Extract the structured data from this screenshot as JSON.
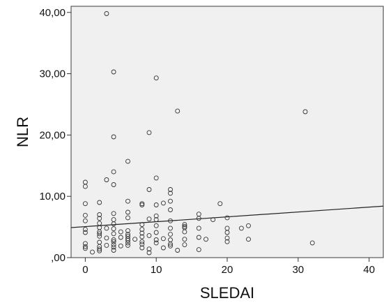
{
  "chart_data": {
    "type": "scatter",
    "title": "",
    "xlabel": "SLEDAI",
    "ylabel": "NLR",
    "xlim": [
      -2,
      42
    ],
    "ylim": [
      0,
      41
    ],
    "x_ticks": [
      0,
      10,
      20,
      30,
      40
    ],
    "x_tick_labels": [
      "0",
      "10",
      "20",
      "30",
      "40"
    ],
    "y_ticks": [
      0,
      10,
      20,
      30,
      40
    ],
    "y_tick_labels": [
      ",00",
      "10,00",
      "20,00",
      "30,00",
      "40,00"
    ],
    "grid": false,
    "background_color": "#f0f0f0",
    "marker": "hollow-circle",
    "points": [
      [
        3,
        39.8
      ],
      [
        4,
        30.3
      ],
      [
        10,
        29.3
      ],
      [
        13,
        23.9
      ],
      [
        31,
        23.8
      ],
      [
        9,
        20.4
      ],
      [
        4,
        19.7
      ],
      [
        6,
        15.7
      ],
      [
        4,
        14
      ],
      [
        3,
        12.7
      ],
      [
        0,
        12.3
      ],
      [
        0,
        11.6
      ],
      [
        4,
        11.9
      ],
      [
        10,
        13
      ],
      [
        12,
        11.1
      ],
      [
        12,
        10.5
      ],
      [
        9,
        11.1
      ],
      [
        6,
        9.2
      ],
      [
        2,
        9
      ],
      [
        0,
        8.8
      ],
      [
        8,
        8.8
      ],
      [
        8,
        8.6
      ],
      [
        10,
        8.6
      ],
      [
        11,
        8.9
      ],
      [
        12,
        9.2
      ],
      [
        19,
        8.8
      ],
      [
        12,
        7.8
      ],
      [
        6,
        7.4
      ],
      [
        4,
        7.2
      ],
      [
        2,
        7
      ],
      [
        0,
        6.9
      ],
      [
        16,
        7.1
      ],
      [
        16,
        6.4
      ],
      [
        20,
        6.5
      ],
      [
        18,
        6.2
      ],
      [
        9,
        6.3
      ],
      [
        10,
        6.2
      ],
      [
        12,
        6
      ],
      [
        6,
        6.5
      ],
      [
        4,
        6.2
      ],
      [
        2,
        6.4
      ],
      [
        0,
        6
      ],
      [
        14,
        5.4
      ],
      [
        14,
        5.1
      ],
      [
        14,
        4.9
      ],
      [
        16,
        4.8
      ],
      [
        20,
        4.8
      ],
      [
        22,
        4.8
      ],
      [
        23,
        5.2
      ],
      [
        12,
        4.8
      ],
      [
        10,
        5.2
      ],
      [
        8,
        4.6
      ],
      [
        6,
        4.4
      ],
      [
        5,
        4.2
      ],
      [
        4,
        4.7
      ],
      [
        3,
        4.8
      ],
      [
        2,
        4.9
      ],
      [
        0,
        4.6
      ],
      [
        0,
        4.1
      ],
      [
        2,
        4.2
      ],
      [
        4,
        3.9
      ],
      [
        6,
        3.8
      ],
      [
        8,
        4
      ],
      [
        10,
        4.1
      ],
      [
        12,
        3.8
      ],
      [
        14,
        4.2
      ],
      [
        20,
        4.1
      ],
      [
        2,
        3.5
      ],
      [
        3,
        3.2
      ],
      [
        5,
        3.3
      ],
      [
        6,
        3.1
      ],
      [
        7,
        3
      ],
      [
        8,
        3.4
      ],
      [
        9,
        3.6
      ],
      [
        11,
        3.1
      ],
      [
        12,
        2.9
      ],
      [
        14,
        3
      ],
      [
        16,
        3.3
      ],
      [
        17,
        3
      ],
      [
        20,
        3.2
      ],
      [
        23,
        3
      ],
      [
        0,
        2.3
      ],
      [
        2,
        2.5
      ],
      [
        4,
        2.6
      ],
      [
        6,
        2.4
      ],
      [
        8,
        2.2
      ],
      [
        10,
        2.4
      ],
      [
        12,
        2.2
      ],
      [
        14,
        2.1
      ],
      [
        20,
        2.6
      ],
      [
        32,
        2.4
      ],
      [
        0,
        1.8
      ],
      [
        2,
        1.8
      ],
      [
        3,
        2
      ],
      [
        4,
        1.7
      ],
      [
        5,
        1.9
      ],
      [
        6,
        2
      ],
      [
        8,
        1.6
      ],
      [
        11,
        1.6
      ],
      [
        13,
        1.2
      ],
      [
        16,
        1.3
      ],
      [
        0,
        1.5
      ],
      [
        1,
        0.9
      ],
      [
        2,
        1.1
      ],
      [
        4,
        1.2
      ],
      [
        9,
        0.8
      ],
      [
        9,
        1.4
      ],
      [
        2,
        1.4
      ],
      [
        4,
        2.1
      ],
      [
        6,
        2.8
      ],
      [
        8,
        2.6
      ],
      [
        10,
        2.9
      ],
      [
        12,
        1.9
      ],
      [
        2,
        5.6
      ],
      [
        4,
        5.5
      ],
      [
        2,
        3.9
      ],
      [
        6,
        3.5
      ],
      [
        8,
        5.4
      ],
      [
        10,
        6.8
      ],
      [
        4,
        2.9
      ]
    ],
    "fit_line": {
      "x": [
        -2,
        42
      ],
      "y": [
        4.9,
        8.4
      ]
    }
  }
}
